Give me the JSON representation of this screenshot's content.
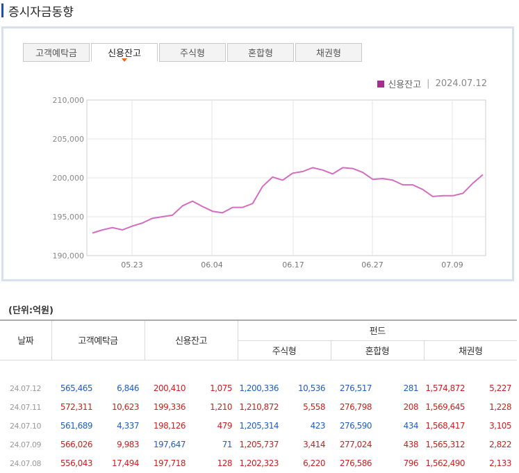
{
  "page": {
    "title": "증시자금동향"
  },
  "tabs": [
    {
      "label": "고객예탁금",
      "active": false
    },
    {
      "label": "신용잔고",
      "active": true
    },
    {
      "label": "주식형",
      "active": false
    },
    {
      "label": "혼합형",
      "active": false
    },
    {
      "label": "채권형",
      "active": false
    }
  ],
  "legend": {
    "series": "신용잔고",
    "separator": "|",
    "date": "2024.07.12",
    "color": "#a0308c"
  },
  "chart_data": {
    "type": "line",
    "y_ticks": [
      "210,000",
      "205,000",
      "200,000",
      "195,000",
      "190,000"
    ],
    "x_ticks": [
      "05.23",
      "06.04",
      "06.17",
      "06.27",
      "07.09"
    ],
    "ylim": [
      190000,
      210000
    ],
    "line_color": "#d56cc0",
    "grid": true,
    "series": [
      {
        "name": "신용잔고",
        "values": [
          192900,
          193300,
          193600,
          193300,
          193800,
          194200,
          194800,
          195000,
          195200,
          196400,
          197000,
          196300,
          195700,
          195500,
          196200,
          196200,
          196700,
          198900,
          200100,
          199700,
          200600,
          200800,
          201300,
          201000,
          200500,
          201300,
          201200,
          200700,
          199800,
          199900,
          199700,
          199100,
          199100,
          198500,
          197600,
          197700,
          197700,
          198000,
          199300,
          200400
        ]
      }
    ]
  },
  "unit_label": "(단위:억원)",
  "table": {
    "headers": {
      "date": "날짜",
      "deposit": "고객예탁금",
      "credit": "신용잔고",
      "fund": "펀드",
      "stock": "주식형",
      "mixed": "혼합형",
      "bond": "채권형"
    },
    "rows": [
      {
        "date": "24.07.12",
        "deposit": "565,465",
        "deposit_chg": "6,846",
        "credit": "200,410",
        "credit_chg": "1,075",
        "stock": "1,200,336",
        "stock_chg": "10,536",
        "mixed": "276,517",
        "mixed_chg": "281",
        "bond": "1,574,872",
        "bond_chg": "5,227",
        "colors": [
          "blue",
          "blue",
          "red",
          "red",
          "blue",
          "blue",
          "blue",
          "blue",
          "red",
          "red"
        ]
      },
      {
        "date": "24.07.11",
        "deposit": "572,311",
        "deposit_chg": "10,623",
        "credit": "199,336",
        "credit_chg": "1,210",
        "stock": "1,210,872",
        "stock_chg": "5,558",
        "mixed": "276,798",
        "mixed_chg": "208",
        "bond": "1,569,645",
        "bond_chg": "1,228",
        "colors": [
          "red",
          "red",
          "red",
          "red",
          "red",
          "red",
          "red",
          "red",
          "red",
          "red"
        ]
      },
      {
        "date": "24.07.10",
        "deposit": "561,689",
        "deposit_chg": "4,337",
        "credit": "198,126",
        "credit_chg": "479",
        "stock": "1,205,314",
        "stock_chg": "423",
        "mixed": "276,590",
        "mixed_chg": "434",
        "bond": "1,568,417",
        "bond_chg": "3,105",
        "colors": [
          "blue",
          "blue",
          "red",
          "red",
          "blue",
          "blue",
          "blue",
          "blue",
          "red",
          "red"
        ]
      },
      {
        "date": "24.07.09",
        "deposit": "566,026",
        "deposit_chg": "9,983",
        "credit": "197,647",
        "credit_chg": "71",
        "stock": "1,205,737",
        "stock_chg": "3,414",
        "mixed": "277,024",
        "mixed_chg": "438",
        "bond": "1,565,312",
        "bond_chg": "2,822",
        "colors": [
          "red",
          "red",
          "blue",
          "blue",
          "red",
          "red",
          "red",
          "red",
          "red",
          "red"
        ]
      },
      {
        "date": "24.07.08",
        "deposit": "556,043",
        "deposit_chg": "17,494",
        "credit": "197,718",
        "credit_chg": "128",
        "stock": "1,202,323",
        "stock_chg": "6,220",
        "mixed": "276,586",
        "mixed_chg": "796",
        "bond": "1,562,490",
        "bond_chg": "2,133",
        "colors": [
          "red",
          "red",
          "red",
          "red",
          "red",
          "red",
          "red",
          "red",
          "red",
          "red"
        ]
      }
    ]
  }
}
